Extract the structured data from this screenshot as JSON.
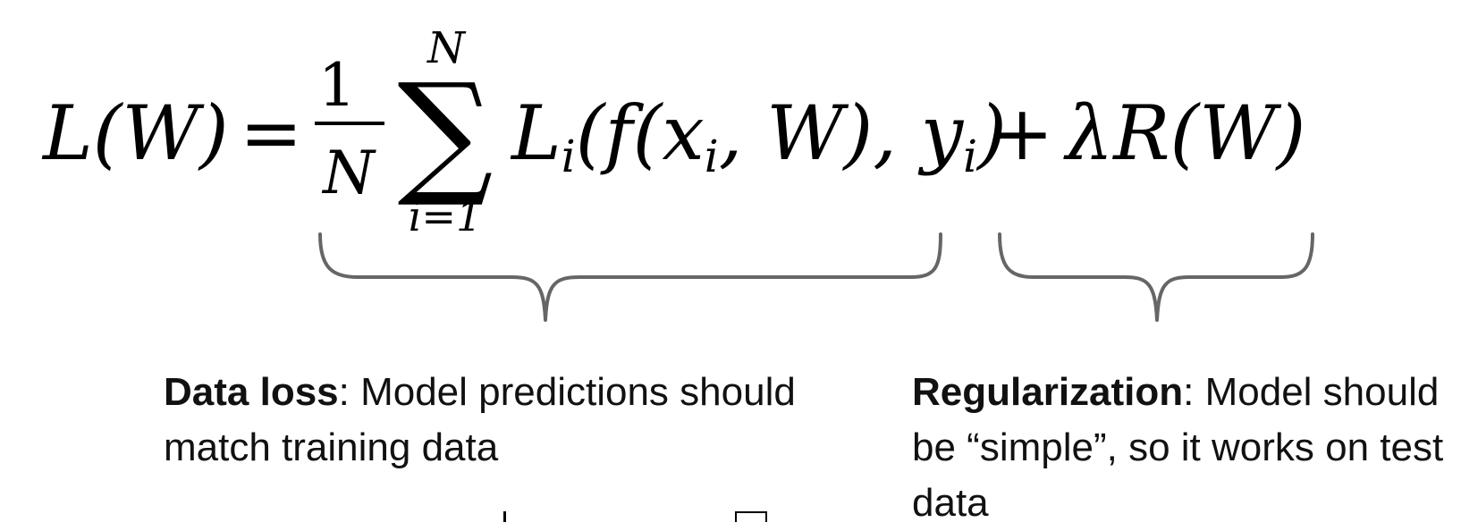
{
  "equation": {
    "lhs": "L(W)",
    "equals": "=",
    "frac_num": "1",
    "frac_den": "N",
    "sum_symbol": "∑",
    "sum_upper": "N",
    "sum_lower": "i=1",
    "data_term_L": "L",
    "data_term_sub": "i",
    "data_term_args": "(f(x",
    "x_sub": "i",
    "data_term_mid": ", W), y",
    "y_sub": "i",
    "data_term_close": ")",
    "plus": "+",
    "reg_term": "λR(W)"
  },
  "annotations": {
    "data_loss": {
      "title": "Data loss",
      "text": ": Model predictions should match training data"
    },
    "regularization": {
      "title": "Regularization",
      "text": ": Model should be “simple”, so it works on test data"
    }
  }
}
